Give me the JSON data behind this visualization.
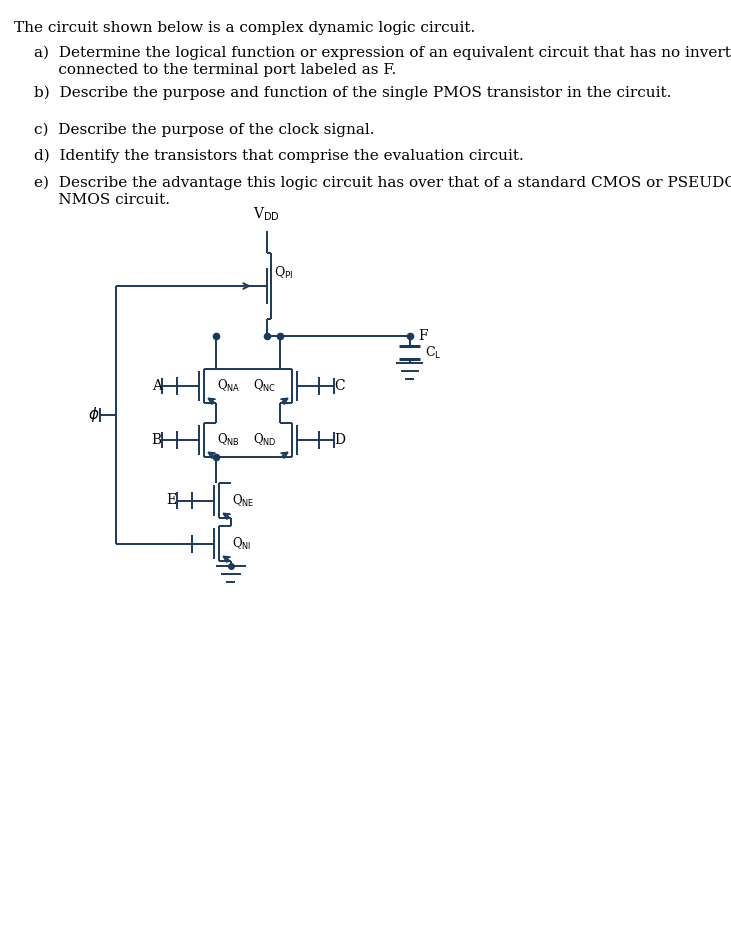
{
  "title_text": "The circuit shown below is a complex dynamic logic circuit.",
  "questions": [
    "a)  Determine the logical function or expression of an equivalent circuit that has no inverter\n     connected to the terminal port labeled as F.",
    "b)  Describe the purpose and function of the single PMOS transistor in the circuit.",
    "c)  Describe the purpose of the clock signal.",
    "d)  Identify the transistors that comprise the evaluation circuit.",
    "e)  Describe the advantage this logic circuit has over that of a standard CMOS or PSEUDO\n     NMOS circuit."
  ],
  "text_color": "#000000",
  "circuit_color": "#1a3a5c",
  "bg_color": "#ffffff",
  "font_size_title": 11,
  "font_size_q": 11
}
